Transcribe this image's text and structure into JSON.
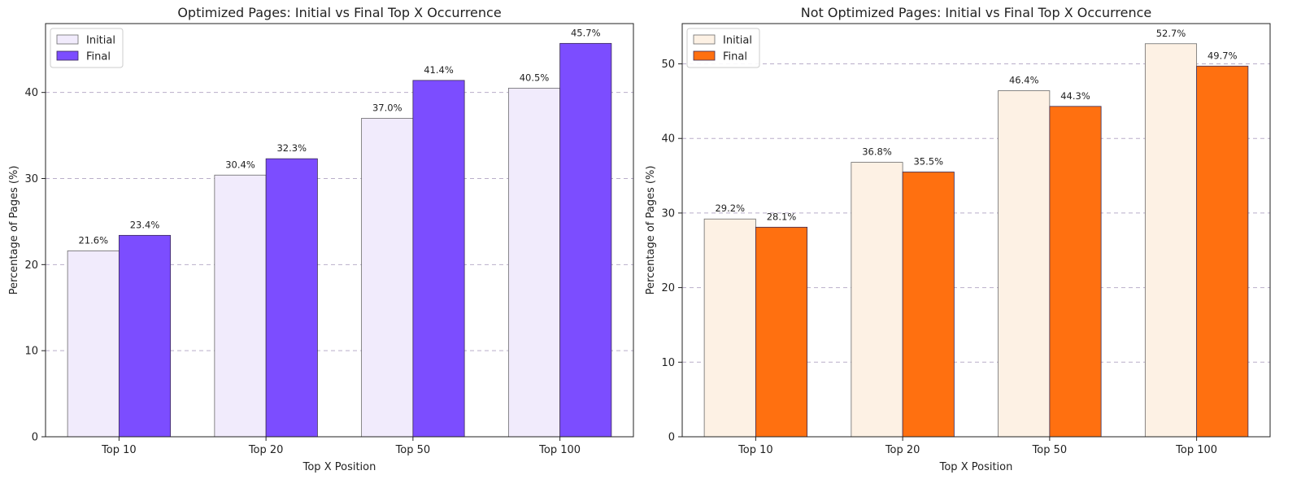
{
  "chart_data": [
    {
      "type": "bar",
      "title": "Optimized Pages: Initial vs Final Top X Occurrence",
      "xlabel": "Top X Position",
      "ylabel": "Percentage of Pages (%)",
      "categories": [
        "Top 10",
        "Top 20",
        "Top 50",
        "Top 100"
      ],
      "series": [
        {
          "name": "Initial",
          "values": [
            21.6,
            30.4,
            37.0,
            40.5
          ],
          "labels": [
            "21.6%",
            "30.4%",
            "37.0%",
            "40.5%"
          ],
          "color": "#f1ebfc"
        },
        {
          "name": "Final",
          "values": [
            23.4,
            32.3,
            41.4,
            45.7
          ],
          "labels": [
            "23.4%",
            "32.3%",
            "41.4%",
            "45.7%"
          ],
          "color": "#7c4dff"
        }
      ],
      "ylim": [
        0,
        48
      ],
      "yticks": [
        0,
        10,
        20,
        30,
        40
      ],
      "grid": true,
      "legend": "top-left"
    },
    {
      "type": "bar",
      "title": "Not Optimized Pages: Initial vs Final Top X Occurrence",
      "xlabel": "Top X Position",
      "ylabel": "Percentage of Pages (%)",
      "categories": [
        "Top 10",
        "Top 20",
        "Top 50",
        "Top 100"
      ],
      "series": [
        {
          "name": "Initial",
          "values": [
            29.2,
            36.8,
            46.4,
            52.7
          ],
          "labels": [
            "29.2%",
            "36.8%",
            "46.4%",
            "52.7%"
          ],
          "color": "#fdf1e4"
        },
        {
          "name": "Final",
          "values": [
            28.1,
            35.5,
            44.3,
            49.7
          ],
          "labels": [
            "28.1%",
            "35.5%",
            "44.3%",
            "49.7%"
          ],
          "color": "#ff7010"
        }
      ],
      "ylim": [
        0,
        55.4
      ],
      "yticks": [
        0,
        10,
        20,
        30,
        40,
        50
      ],
      "grid": true,
      "legend": "top-left"
    }
  ]
}
